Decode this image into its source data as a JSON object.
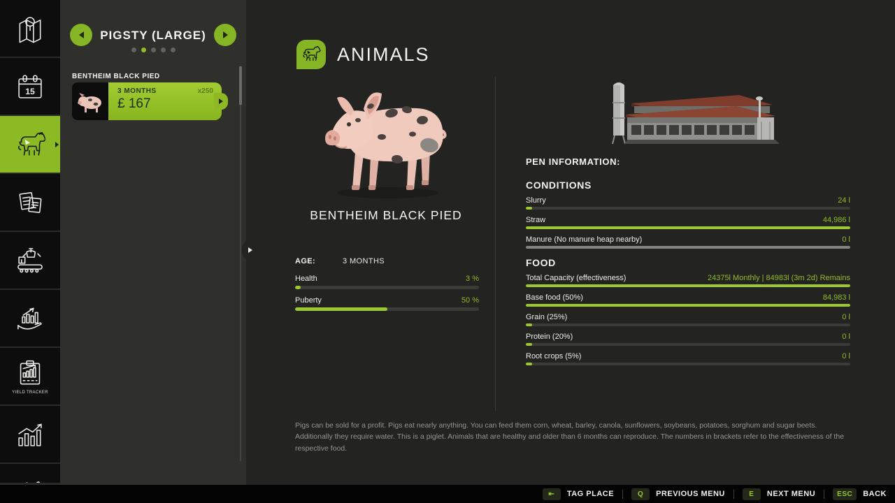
{
  "colors": {
    "accent": "#8fbc27",
    "bar_green": "#9cc72f",
    "bar_gray": "#83837f",
    "card_green": "#93c028"
  },
  "sidebar": {
    "items": [
      {
        "icon": "map-icon",
        "active": false
      },
      {
        "icon": "calendar-icon",
        "active": false,
        "calendar_day": "15"
      },
      {
        "icon": "animals-icon",
        "active": true
      },
      {
        "icon": "contracts-icon",
        "active": false
      },
      {
        "icon": "production-icon",
        "active": false
      },
      {
        "icon": "finances-icon",
        "active": false
      },
      {
        "icon": "yield-tracker-icon",
        "active": false,
        "caption": "YIELD TRACKER"
      },
      {
        "icon": "statistics-icon",
        "active": false
      },
      {
        "icon": "partial-icon",
        "active": false,
        "partial": true
      }
    ]
  },
  "left_panel": {
    "title": "PIGSTY (LARGE)",
    "dots": {
      "total": 5,
      "active_index": 1
    },
    "group_label": "BENTHEIM BLACK PIED",
    "card": {
      "age": "3 MONTHS",
      "count": "x250",
      "price": "£ 167"
    }
  },
  "main": {
    "header": {
      "title": "ANIMALS"
    },
    "animal": {
      "name": "BENTHEIM BLACK PIED",
      "age_label": "AGE:",
      "age_value": "3 MONTHS",
      "stats": [
        {
          "label": "Health",
          "value": "3 %",
          "pct": 3,
          "fill": "green"
        },
        {
          "label": "Puberty",
          "value": "50 %",
          "pct": 50,
          "fill": "green"
        }
      ]
    },
    "pen": {
      "title": "PEN INFORMATION:",
      "conditions": {
        "title": "CONDITIONS",
        "rows": [
          {
            "label": "Slurry",
            "value": "24 l",
            "pct": 2,
            "fill": "green"
          },
          {
            "label": "Straw",
            "value": "44,986 l",
            "pct": 100,
            "fill": "green"
          },
          {
            "label": "Manure (No manure heap nearby)",
            "value": "0 l",
            "pct": 100,
            "fill": "gray"
          }
        ]
      },
      "food": {
        "title": "FOOD",
        "rows": [
          {
            "label": "Total Capacity (effectiveness)",
            "value": "24375l Monthly | 84983l (3m 2d) Remains",
            "pct": 100,
            "fill": "green"
          },
          {
            "label": "Base food (50%)",
            "value": "84,983 l",
            "pct": 100,
            "fill": "green"
          },
          {
            "label": "Grain (25%)",
            "value": "0 l",
            "pct": 2,
            "fill": "green"
          },
          {
            "label": "Protein (20%)",
            "value": "0 l",
            "pct": 2,
            "fill": "green"
          },
          {
            "label": "Root crops (5%)",
            "value": "0 l",
            "pct": 2,
            "fill": "green"
          }
        ]
      }
    },
    "description": "Pigs can be sold for a profit. Pigs eat nearly anything. You can feed them corn, wheat, barley, canola, sunflowers, soybeans, potatoes, sorghum and sugar beets. Additionally they require water. This is a piglet. Animals that are healthy and older than 6 months can reproduce. The numbers in brackets refer to the effectiveness of the respective food."
  },
  "bottom_bar": {
    "items": [
      {
        "key": "⇤",
        "label": "TAG PLACE"
      },
      {
        "key": "Q",
        "label": "PREVIOUS MENU"
      },
      {
        "key": "E",
        "label": "NEXT MENU"
      },
      {
        "key": "ESC",
        "label": "BACK"
      }
    ]
  }
}
